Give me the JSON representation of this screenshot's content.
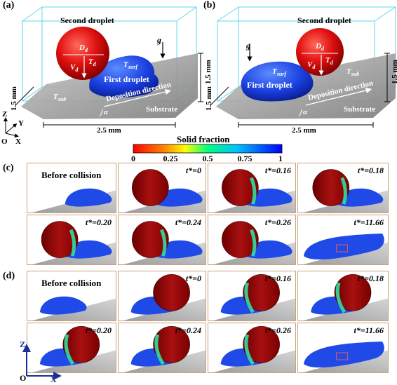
{
  "panel_labels": {
    "a": "(a)",
    "b": "(b)",
    "c": "(c)",
    "d": "(d)"
  },
  "schematic": {
    "second_droplet": "Second droplet",
    "first_droplet": "First droplet",
    "deposition_direction": "Deposition direction",
    "substrate": "Substrate",
    "height": "1.5 mm",
    "depth": "1.5 mm",
    "width": "2.5 mm",
    "d_d": "D",
    "d_d_sub": "d",
    "v_d": "V",
    "v_d_sub": "d",
    "t_d": "T",
    "t_d_sub": "d",
    "t_surf": "T",
    "t_surf_sub": "surf",
    "t_sub": "T",
    "t_sub_sub": "sub",
    "gravity": "g",
    "alpha": "α",
    "axis_z": "Z",
    "axis_y": "Y",
    "axis_x": "X",
    "origin": "O"
  },
  "colorbar": {
    "title": "Solid fraction",
    "ticks": [
      "0",
      "0.25",
      "0.5",
      "0.75",
      "1"
    ],
    "colors": [
      "#ff0000",
      "#ffff00",
      "#00ff80",
      "#00a0ff",
      "#0000ff"
    ]
  },
  "time_labels": [
    "t*=0",
    "t*=0.16",
    "t*=0.18",
    "t*=0.20",
    "t*=0.24",
    "t*=0.26",
    "t*=11.66"
  ],
  "before_collision": "Before collision",
  "colors": {
    "droplet_red": "#b01010",
    "droplet_blue": "#1040e0",
    "box_edge": "#5fd8e8",
    "frame": "#c8a27a",
    "substrate": "#a8a8a8"
  },
  "bottom_axes": {
    "z": "Z",
    "x": "X",
    "o": "O"
  }
}
